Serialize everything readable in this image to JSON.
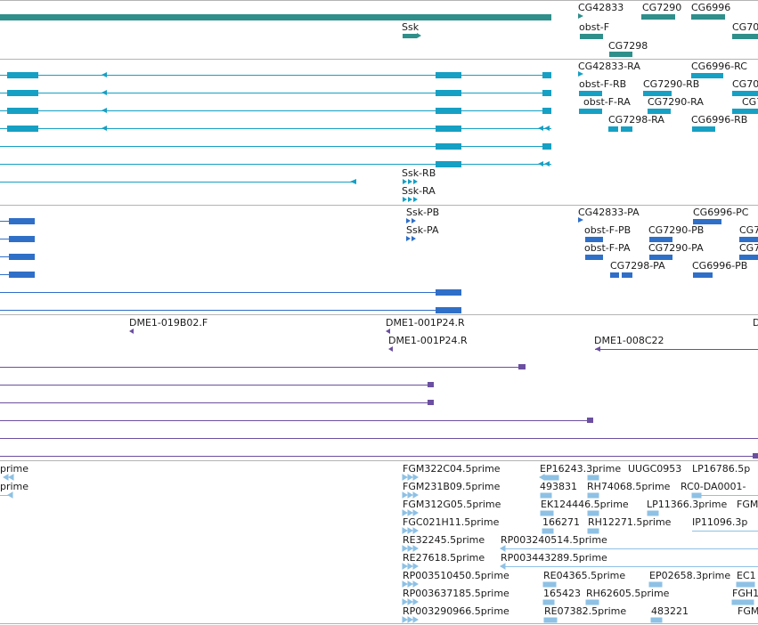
{
  "colors": {
    "gene": "#2f8f8a",
    "transcript": "#16a0c4",
    "protein": "#2f6fc8",
    "clone": "#6b4fa0",
    "est": "#8ec1e4",
    "divider": "#b4b4b4"
  },
  "tracks": {
    "genes": {
      "labels": [
        "CG42833",
        "CG7290",
        "CG6996",
        "Ssk",
        "obst-F",
        "CG70",
        "CG7298"
      ]
    },
    "transcripts": {
      "labels": [
        "CG42833-RA",
        "CG6996-RC",
        "obst-F-RB",
        "CG7290-RB",
        "CG70",
        "obst-F-RA",
        "CG7290-RA",
        "CG7",
        "CG7298-RA",
        "CG6996-RB",
        "Ssk-RB",
        "Ssk-RA"
      ]
    },
    "proteins": {
      "labels": [
        "Ssk-PB",
        "CG42833-PA",
        "CG6996-PC",
        "Ssk-PA",
        "obst-F-PB",
        "CG7290-PB",
        "CG7",
        "obst-F-PA",
        "CG7290-PA",
        "CG7",
        "CG7298-PA",
        "CG6996-PB"
      ]
    },
    "clones": {
      "labels": [
        "DME1-019B02.F",
        "DME1-001P24.R",
        "D",
        "DME1-001P24.R",
        "DME1-008C22"
      ]
    },
    "ests": {
      "labels": [
        "prime",
        "prime",
        "FGM322C04.5prime",
        "EP16243.3prime",
        "UUGC0953",
        "LP16786.5p",
        "FGM231B09.5prime",
        "493831",
        "RH74068.5prime",
        "RC0-DA0001-",
        "FGM312G05.5prime",
        "EK124446.5prime",
        "LP11366.3prime",
        "FGM",
        "FGC021H11.5prime",
        "166271",
        "RH12271.5prime",
        "IP11096.3p",
        "RE32245.5prime",
        "RP003240514.5prime",
        "RE27618.5prime",
        "RP003443289.5prime",
        "RP003510450.5prime",
        "RE04365.5prime",
        "EP02658.3prime",
        "EC1",
        "RP003637185.5prime",
        "165423",
        "RH62605.5prime",
        "FGH1",
        "RP003290966.5prime",
        "RE07382.5prime",
        "483221",
        "FGM"
      ]
    }
  }
}
